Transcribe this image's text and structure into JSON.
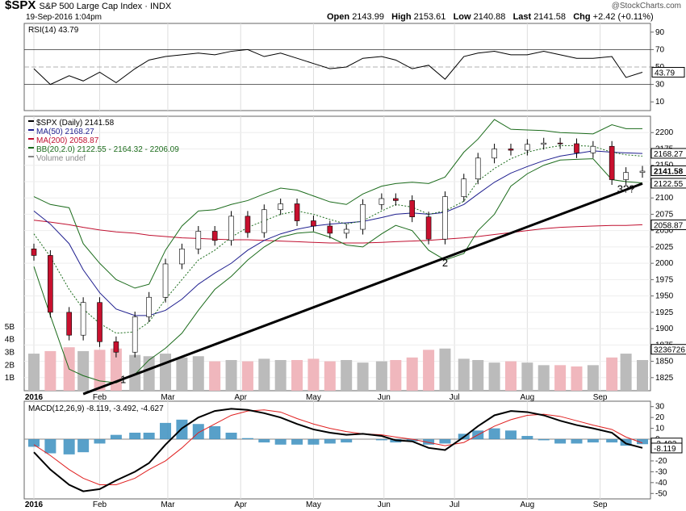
{
  "header": {
    "symbol": "$SPX",
    "description": "S&P 500 Large Cap Index",
    "exchange": "INDX",
    "date": "19-Sep-2016 1:04pm",
    "open_label": "Open",
    "open": "2143.99",
    "high_label": "High",
    "high": "2153.61",
    "low_label": "Low",
    "low": "2140.88",
    "last_label": "Last",
    "last": "2141.58",
    "chg_label": "Chg",
    "chg": "+2.42 (+0.11%)",
    "copyright": "@StockCharts.com"
  },
  "chart_data": [
    {
      "panel": "rsi",
      "type": "line",
      "label": "RSI(14) 43.79",
      "ylim": [
        0,
        100
      ],
      "yticks": [
        10,
        30,
        50,
        70,
        90
      ],
      "reference_lines": [
        30,
        50,
        70
      ],
      "current_value": "43.79",
      "x": [
        "2016-01-04",
        "2016-01-11",
        "2016-01-19",
        "2016-01-25",
        "2016-02-01",
        "2016-02-08",
        "2016-02-16",
        "2016-02-22",
        "2016-02-29",
        "2016-03-07",
        "2016-03-14",
        "2016-03-21",
        "2016-03-28",
        "2016-04-04",
        "2016-04-11",
        "2016-04-18",
        "2016-04-25",
        "2016-05-02",
        "2016-05-09",
        "2016-05-16",
        "2016-05-23",
        "2016-05-31",
        "2016-06-06",
        "2016-06-13",
        "2016-06-20",
        "2016-06-27",
        "2016-07-05",
        "2016-07-11",
        "2016-07-18",
        "2016-07-25",
        "2016-08-01",
        "2016-08-08",
        "2016-08-15",
        "2016-08-22",
        "2016-08-29",
        "2016-09-06",
        "2016-09-12",
        "2016-09-19"
      ],
      "values": [
        48,
        30,
        40,
        34,
        44,
        32,
        48,
        58,
        62,
        64,
        66,
        64,
        68,
        70,
        62,
        66,
        60,
        54,
        48,
        50,
        60,
        62,
        58,
        48,
        52,
        36,
        62,
        66,
        68,
        64,
        64,
        68,
        64,
        60,
        60,
        62,
        38,
        44
      ]
    },
    {
      "panel": "price",
      "type": "candlestick",
      "legend": [
        {
          "name": "$SPX (Daily) 2141.58",
          "color": "#000000"
        },
        {
          "name": "MA(50) 2168.27",
          "color": "#1f1f8f"
        },
        {
          "name": "MA(200) 2058.87",
          "color": "#c01030"
        },
        {
          "name": "BB(20,2.0) 2122.55 - 2164.32 - 2206.09",
          "color": "#1b6b1b"
        },
        {
          "name": "Volume undef",
          "color": "#888888"
        }
      ],
      "ylim": [
        1805,
        2225
      ],
      "yticks": [
        1825,
        1850,
        1875,
        1900,
        1925,
        1950,
        1975,
        2000,
        2025,
        2050,
        2075,
        2100,
        2125,
        2150,
        2175,
        2200
      ],
      "x_month_labels": [
        "2016",
        "Feb",
        "Mar",
        "Apr",
        "May",
        "Jun",
        "Jul",
        "Aug",
        "Sep"
      ],
      "x": [
        "2016-01-04",
        "2016-01-11",
        "2016-01-19",
        "2016-01-25",
        "2016-02-01",
        "2016-02-08",
        "2016-02-16",
        "2016-02-22",
        "2016-02-29",
        "2016-03-07",
        "2016-03-14",
        "2016-03-21",
        "2016-03-28",
        "2016-04-04",
        "2016-04-11",
        "2016-04-18",
        "2016-04-25",
        "2016-05-02",
        "2016-05-09",
        "2016-05-16",
        "2016-05-23",
        "2016-05-31",
        "2016-06-06",
        "2016-06-13",
        "2016-06-20",
        "2016-06-27",
        "2016-07-05",
        "2016-07-11",
        "2016-07-18",
        "2016-07-25",
        "2016-08-01",
        "2016-08-08",
        "2016-08-15",
        "2016-08-22",
        "2016-08-29",
        "2016-09-06",
        "2016-09-12",
        "2016-09-19"
      ],
      "close": [
        2012,
        1925,
        1890,
        1940,
        1880,
        1864,
        1918,
        1948,
        1999,
        2022,
        2049,
        2035,
        2072,
        2047,
        2082,
        2091,
        2065,
        2057,
        2046,
        2052,
        2090,
        2099,
        2096,
        2071,
        2037,
        2102,
        2129,
        2161,
        2175,
        2173,
        2182,
        2184,
        2183,
        2169,
        2179,
        2128,
        2139,
        2141
      ],
      "ma50": [
        2080,
        2060,
        2030,
        1990,
        1955,
        1930,
        1920,
        1920,
        1928,
        1945,
        1968,
        1985,
        2000,
        2020,
        2035,
        2045,
        2052,
        2057,
        2060,
        2062,
        2064,
        2070,
        2075,
        2077,
        2075,
        2078,
        2090,
        2106,
        2124,
        2138,
        2148,
        2157,
        2164,
        2168,
        2172,
        2170,
        2169,
        2168
      ],
      "ma200": [
        2066,
        2063,
        2059,
        2055,
        2051,
        2048,
        2046,
        2043,
        2041,
        2039,
        2038,
        2037,
        2036,
        2036,
        2035,
        2034,
        2033,
        2032,
        2031,
        2031,
        2031,
        2032,
        2033,
        2034,
        2035,
        2037,
        2039,
        2041,
        2044,
        2047,
        2050,
        2053,
        2055,
        2056,
        2057,
        2058,
        2058,
        2059
      ],
      "bb_upper": [
        2102,
        2090,
        2085,
        2030,
        2000,
        1975,
        1962,
        1968,
        2020,
        2057,
        2080,
        2082,
        2090,
        2096,
        2106,
        2115,
        2112,
        2103,
        2094,
        2090,
        2106,
        2118,
        2122,
        2124,
        2122,
        2132,
        2170,
        2190,
        2220,
        2205,
        2204,
        2203,
        2200,
        2199,
        2198,
        2212,
        2206,
        2206
      ],
      "bb_middle": [
        2045,
        2010,
        1960,
        1930,
        1908,
        1893,
        1895,
        1910,
        1945,
        1975,
        2005,
        2020,
        2040,
        2055,
        2065,
        2075,
        2080,
        2075,
        2067,
        2060,
        2065,
        2080,
        2090,
        2086,
        2075,
        2080,
        2095,
        2126,
        2145,
        2160,
        2170,
        2176,
        2180,
        2180,
        2179,
        2170,
        2166,
        2164
      ],
      "bb_lower": [
        1995,
        1920,
        1838,
        1828,
        1820,
        1817,
        1830,
        1852,
        1870,
        1893,
        1928,
        1960,
        1980,
        2005,
        2025,
        2040,
        2046,
        2048,
        2040,
        2028,
        2025,
        2045,
        2058,
        2050,
        2020,
        2005,
        2015,
        2050,
        2075,
        2118,
        2137,
        2150,
        2158,
        2159,
        2160,
        2128,
        2125,
        2123
      ],
      "trendline": {
        "start": [
          "2016-01-25",
          1800
        ],
        "end": [
          "2016-09-19",
          2122
        ]
      },
      "annotations": [
        {
          "text": "1",
          "at": [
            "2016-02-11",
            1817
          ]
        },
        {
          "text": "2",
          "at": [
            "2016-06-27",
            1995
          ]
        },
        {
          "text": "3??",
          "at": [
            "2016-09-12",
            2108
          ]
        }
      ],
      "value_tags": [
        {
          "text": "2168.27",
          "value": 2168.27
        },
        {
          "text": "2141.58",
          "value": 2141.58
        },
        {
          "text": "2122.55",
          "value": 2122.55
        },
        {
          "text": "2058.87",
          "value": 2058.87
        }
      ]
    },
    {
      "panel": "volume",
      "type": "bar",
      "ylim": [
        0,
        6000000000
      ],
      "yticks_labels": [
        "1B",
        "2B",
        "3B",
        "4B",
        "5B"
      ],
      "current_value": "3236726",
      "x": [
        "2016-01-04",
        "2016-01-11",
        "2016-01-19",
        "2016-01-25",
        "2016-02-01",
        "2016-02-08",
        "2016-02-16",
        "2016-02-22",
        "2016-02-29",
        "2016-03-07",
        "2016-03-14",
        "2016-03-21",
        "2016-03-28",
        "2016-04-04",
        "2016-04-11",
        "2016-04-18",
        "2016-04-25",
        "2016-05-02",
        "2016-05-09",
        "2016-05-16",
        "2016-05-23",
        "2016-05-31",
        "2016-06-06",
        "2016-06-13",
        "2016-06-20",
        "2016-06-27",
        "2016-07-05",
        "2016-07-11",
        "2016-07-18",
        "2016-07-25",
        "2016-08-01",
        "2016-08-08",
        "2016-08-15",
        "2016-08-22",
        "2016-08-29",
        "2016-09-06",
        "2016-09-12",
        "2016-09-19"
      ],
      "values": [
        2900000000,
        3100000000,
        3400000000,
        3100000000,
        3200000000,
        3300000000,
        2800000000,
        2700000000,
        2900000000,
        2600000000,
        2700000000,
        2300000000,
        2400000000,
        2300000000,
        2500000000,
        2400000000,
        2400000000,
        2500000000,
        2300000000,
        2400000000,
        2200000000,
        2300000000,
        2400000000,
        2600000000,
        3200000000,
        3300000000,
        2500000000,
        2400000000,
        2200000000,
        2300000000,
        2200000000,
        2000000000,
        2000000000,
        1900000000,
        2000000000,
        2600000000,
        2900000000,
        2400000000
      ]
    },
    {
      "panel": "macd",
      "type": "line",
      "label": "MACD(12,26,9) -8.119, -3.492, -4.627",
      "ylim": [
        -55,
        35
      ],
      "yticks": [
        -50,
        -40,
        -30,
        -20,
        -10,
        0,
        10,
        20,
        30
      ],
      "value_tags": [
        {
          "text": "-3.492",
          "value": -3.492
        },
        {
          "text": "-8.119",
          "value": -8.119
        }
      ],
      "x_month_labels": [
        "2016",
        "Feb",
        "Mar",
        "Apr",
        "May",
        "Jun",
        "Jul",
        "Aug",
        "Sep"
      ],
      "x": [
        "2016-01-04",
        "2016-01-11",
        "2016-01-19",
        "2016-01-25",
        "2016-02-01",
        "2016-02-08",
        "2016-02-16",
        "2016-02-22",
        "2016-02-29",
        "2016-03-07",
        "2016-03-14",
        "2016-03-21",
        "2016-03-28",
        "2016-04-04",
        "2016-04-11",
        "2016-04-18",
        "2016-04-25",
        "2016-05-02",
        "2016-05-09",
        "2016-05-16",
        "2016-05-23",
        "2016-05-31",
        "2016-06-06",
        "2016-06-13",
        "2016-06-20",
        "2016-06-27",
        "2016-07-05",
        "2016-07-11",
        "2016-07-18",
        "2016-07-25",
        "2016-08-01",
        "2016-08-08",
        "2016-08-15",
        "2016-08-22",
        "2016-08-29",
        "2016-09-06",
        "2016-09-12",
        "2016-09-19"
      ],
      "series": [
        {
          "name": "MACD",
          "color": "#000000",
          "values": [
            -12,
            -28,
            -42,
            -48,
            -46,
            -38,
            -30,
            -22,
            -5,
            10,
            20,
            26,
            28,
            27,
            24,
            20,
            14,
            9,
            6,
            4,
            5,
            3,
            -1,
            -2,
            -8,
            -10,
            2,
            12,
            22,
            26,
            25,
            22,
            17,
            13,
            10,
            6,
            -4,
            -8
          ]
        },
        {
          "name": "Signal",
          "color": "#e02020",
          "values": [
            -5,
            -15,
            -28,
            -36,
            -42,
            -42,
            -36,
            -28,
            -20,
            -8,
            6,
            14,
            22,
            26,
            27,
            25,
            19,
            14,
            10,
            7,
            5,
            4,
            2,
            0,
            -3,
            -6,
            -3,
            4,
            12,
            18,
            22,
            23,
            21,
            17,
            13,
            9,
            2,
            -3.5
          ]
        },
        {
          "name": "Histogram",
          "color": "#3b8fc0",
          "values": [
            -7,
            -13,
            -14,
            -12,
            -4,
            4,
            6,
            6,
            15,
            18,
            14,
            12,
            6,
            1,
            -3,
            -5,
            -5,
            -5,
            -4,
            -3,
            0,
            -1,
            -3,
            -2,
            -5,
            -4,
            5,
            8,
            10,
            8,
            3,
            -1,
            -4,
            -4,
            -3,
            -3,
            -6,
            -4.6
          ]
        }
      ]
    }
  ]
}
